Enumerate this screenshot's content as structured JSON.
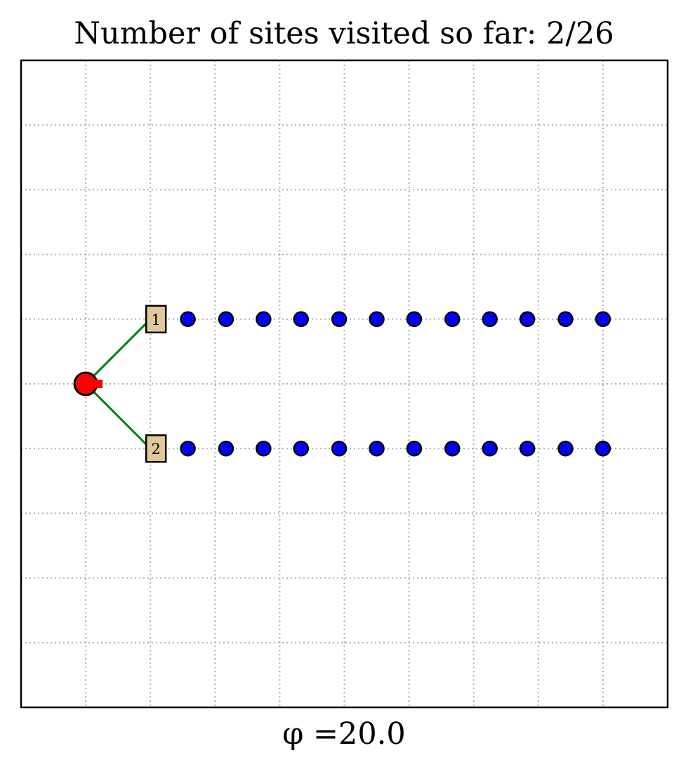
{
  "chart_data": {
    "type": "scatter",
    "title": "Number of sites visited so far: 2/26",
    "xlabel": "φ =20.0",
    "xlim": [
      0,
      10
    ],
    "ylim": [
      0,
      10
    ],
    "grid": true,
    "grid_ticks": [
      1,
      2,
      3,
      4,
      5,
      6,
      7,
      8,
      9
    ],
    "colors": {
      "site_fill": "#0000ff",
      "site_edge": "#000000",
      "visited_fill": "#e0c89a",
      "path": "#008000",
      "robot": "#ff0000"
    },
    "robot": {
      "x": 1.0,
      "y": 5.0
    },
    "visited": [
      {
        "label": "1",
        "x": 2.0,
        "y": 6.0
      },
      {
        "label": "2",
        "x": 2.0,
        "y": 4.0
      }
    ],
    "path_segments": [
      [
        [
          1.0,
          5.0
        ],
        [
          2.0,
          6.0
        ]
      ],
      [
        [
          1.0,
          5.0
        ],
        [
          2.0,
          4.0
        ]
      ]
    ],
    "sites": [
      {
        "x": 2.58,
        "y": 6.0
      },
      {
        "x": 3.17,
        "y": 6.0
      },
      {
        "x": 3.75,
        "y": 6.0
      },
      {
        "x": 4.33,
        "y": 6.0
      },
      {
        "x": 4.92,
        "y": 6.0
      },
      {
        "x": 5.5,
        "y": 6.0
      },
      {
        "x": 6.08,
        "y": 6.0
      },
      {
        "x": 6.67,
        "y": 6.0
      },
      {
        "x": 7.25,
        "y": 6.0
      },
      {
        "x": 7.83,
        "y": 6.0
      },
      {
        "x": 8.42,
        "y": 6.0
      },
      {
        "x": 9.0,
        "y": 6.0
      },
      {
        "x": 2.58,
        "y": 4.0
      },
      {
        "x": 3.17,
        "y": 4.0
      },
      {
        "x": 3.75,
        "y": 4.0
      },
      {
        "x": 4.33,
        "y": 4.0
      },
      {
        "x": 4.92,
        "y": 4.0
      },
      {
        "x": 5.5,
        "y": 4.0
      },
      {
        "x": 6.08,
        "y": 4.0
      },
      {
        "x": 6.67,
        "y": 4.0
      },
      {
        "x": 7.25,
        "y": 4.0
      },
      {
        "x": 7.83,
        "y": 4.0
      },
      {
        "x": 8.42,
        "y": 4.0
      },
      {
        "x": 9.0,
        "y": 4.0
      }
    ]
  }
}
